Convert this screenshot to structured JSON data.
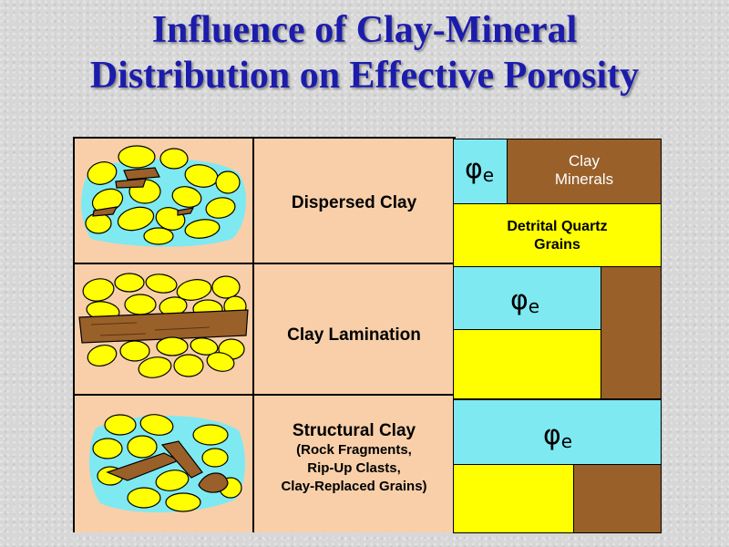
{
  "title": {
    "line1": "Influence of Clay-Mineral",
    "line2": "Distribution on Effective Porosity"
  },
  "rows": {
    "dispersed": {
      "label": "Dispersed Clay"
    },
    "lamination": {
      "label": "Clay Lamination"
    },
    "structural": {
      "label": "Structural Clay",
      "sub1": "(Rock Fragments,",
      "sub2": "Rip-Up Clasts,",
      "sub3": "Clay-Replaced Grains)"
    }
  },
  "columns": {
    "phi_symbol": "φ",
    "phi_subscript": "e",
    "clay_minerals_line1": "Clay",
    "clay_minerals_line2": "Minerals",
    "quartz_line1": "Detrital Quartz",
    "quartz_line2": "Grains"
  },
  "colors": {
    "title": "#1c1cac",
    "pore_cyan": "#7fe9f1",
    "quartz_yellow": "#ffff00",
    "clay_brown": "#99602a",
    "cell_peach": "#f8cfa9"
  }
}
